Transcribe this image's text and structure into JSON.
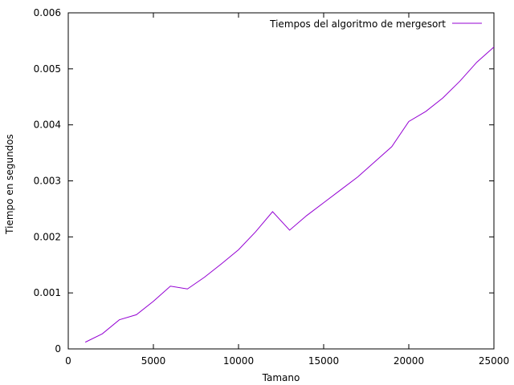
{
  "chart_data": {
    "type": "line",
    "title": "",
    "xlabel": "Tamano",
    "ylabel": "Tiempo en segundos",
    "xlim": [
      0,
      25000
    ],
    "ylim": [
      0,
      0.006
    ],
    "x_ticks": [
      0,
      5000,
      10000,
      15000,
      20000,
      25000
    ],
    "x_tick_labels": [
      "0",
      "5000",
      "10000",
      "15000",
      "20000",
      "25000"
    ],
    "y_ticks": [
      0,
      0.001,
      0.002,
      0.003,
      0.004,
      0.005,
      0.006
    ],
    "y_tick_labels": [
      "0",
      "0.001",
      "0.002",
      "0.003",
      "0.004",
      "0.005",
      "0.006"
    ],
    "grid": false,
    "legend_position": "top-right",
    "series": [
      {
        "name": "Tiempos del algoritmo de mergesort",
        "color": "#9400d3",
        "x": [
          1000,
          2000,
          3000,
          4000,
          5000,
          6000,
          7000,
          8000,
          9000,
          10000,
          11000,
          12000,
          13000,
          14000,
          15000,
          16000,
          17000,
          18000,
          19000,
          20000,
          21000,
          22000,
          23000,
          24000,
          25000
        ],
        "y": [
          0.00012,
          0.00027,
          0.00052,
          0.00061,
          0.00085,
          0.00112,
          0.00107,
          0.00128,
          0.00152,
          0.00177,
          0.00209,
          0.00245,
          0.00212,
          0.00238,
          0.00261,
          0.00284,
          0.00307,
          0.00334,
          0.00361,
          0.00406,
          0.00424,
          0.00448,
          0.00478,
          0.00512,
          0.00539
        ]
      }
    ]
  }
}
